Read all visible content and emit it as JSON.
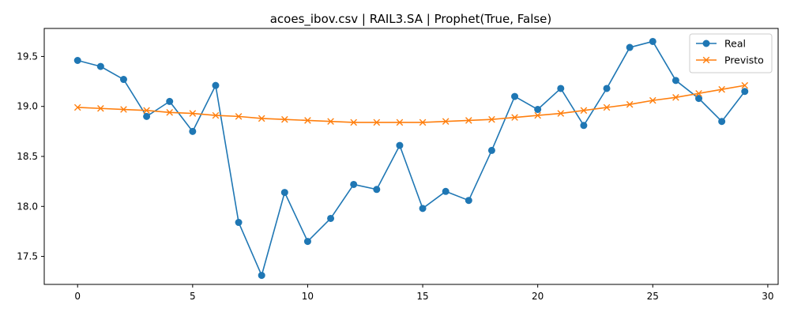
{
  "chart_data": {
    "type": "line",
    "title": "acoes_ibov.csv | RAIL3.SA | Prophet(True, False)",
    "xlabel": "",
    "ylabel": "",
    "x": [
      0,
      1,
      2,
      3,
      4,
      5,
      6,
      7,
      8,
      9,
      10,
      11,
      12,
      13,
      14,
      15,
      16,
      17,
      18,
      19,
      20,
      21,
      22,
      23,
      24,
      25,
      26,
      27,
      28,
      29
    ],
    "xlim": [
      -1.45,
      30.45
    ],
    "ylim": [
      17.22,
      19.78
    ],
    "xticks": [
      0,
      5,
      10,
      15,
      20,
      25,
      30
    ],
    "yticks": [
      17.5,
      18.0,
      18.5,
      19.0,
      19.5
    ],
    "ytick_labels": [
      "17.5",
      "18.0",
      "18.5",
      "19.0",
      "19.5"
    ],
    "grid": false,
    "legend_position": "top-right",
    "series": [
      {
        "name": "Real",
        "color": "#1f77b4",
        "marker": "circle",
        "values": [
          19.46,
          19.4,
          19.27,
          18.9,
          19.05,
          18.75,
          19.21,
          17.84,
          17.31,
          18.14,
          17.65,
          17.88,
          18.22,
          18.17,
          18.61,
          17.98,
          18.15,
          18.06,
          18.56,
          19.1,
          18.97,
          19.18,
          18.81,
          19.18,
          19.59,
          19.65,
          19.26,
          19.08,
          18.85,
          19.15
        ]
      },
      {
        "name": "Previsto",
        "color": "#ff7f0e",
        "marker": "x",
        "values": [
          18.99,
          18.98,
          18.97,
          18.96,
          18.94,
          18.93,
          18.91,
          18.9,
          18.88,
          18.87,
          18.86,
          18.85,
          18.84,
          18.84,
          18.84,
          18.84,
          18.85,
          18.86,
          18.87,
          18.89,
          18.91,
          18.93,
          18.96,
          18.99,
          19.02,
          19.06,
          19.09,
          19.13,
          19.17,
          19.21
        ]
      }
    ]
  }
}
